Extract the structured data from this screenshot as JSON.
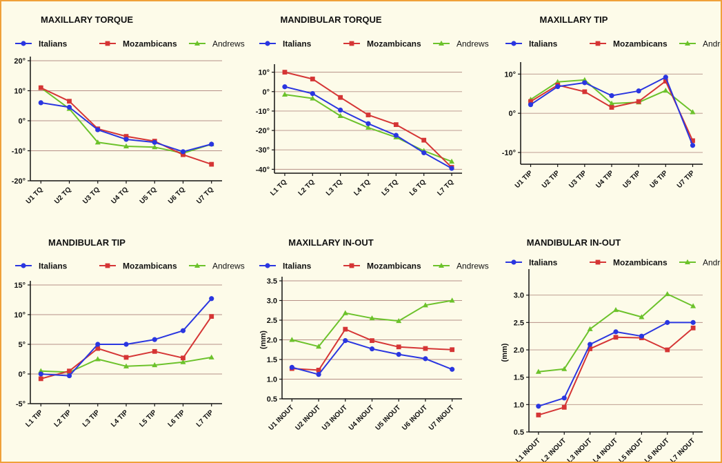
{
  "colors": {
    "background": "#fdfbe9",
    "border": "#f0a13a",
    "gridline": "#b58f86",
    "axis": "#111111"
  },
  "chart_data": [
    {
      "type": "line",
      "title": "MAXILLARY TORQUE",
      "ylabel": "",
      "y_suffix": "°",
      "ylim": [
        -20,
        20
      ],
      "yticks": [
        -20,
        -10,
        0,
        10,
        20
      ],
      "grid": true,
      "legend": "top",
      "categories": [
        "U1 TQ",
        "U2 TQ",
        "U3 TQ",
        "U4 TQ",
        "U5 TQ",
        "U6 TQ",
        "U7 TQ"
      ],
      "series": [
        {
          "name": "Italians",
          "color": "#2a36e0",
          "marker": "circle",
          "values": [
            6.0,
            4.5,
            -3.0,
            -6.2,
            -7.2,
            -10.3,
            -7.8
          ]
        },
        {
          "name": "Mozambicans",
          "color": "#d53535",
          "marker": "square",
          "values": [
            11.0,
            6.5,
            -2.7,
            -5.2,
            -6.8,
            -11.3,
            -14.5
          ]
        },
        {
          "name": "Andrews",
          "color": "#6cc22b",
          "marker": "triangle",
          "values": [
            11.0,
            4.0,
            -7.2,
            -8.5,
            -8.8,
            -10.8,
            -7.8
          ]
        }
      ]
    },
    {
      "type": "line",
      "title": "MANDIBULAR TORQUE",
      "ylabel": "",
      "y_suffix": "°",
      "ylim": [
        -42,
        12
      ],
      "yticks": [
        -40,
        -30,
        -20,
        -10,
        0,
        10
      ],
      "grid": true,
      "legend": "top",
      "categories": [
        "L1 TQ",
        "L2 TQ",
        "L3 TQ",
        "L4 TQ",
        "L5 TQ",
        "L6 TQ",
        "L7 TQ"
      ],
      "series": [
        {
          "name": "Italians",
          "color": "#2a36e0",
          "marker": "circle",
          "values": [
            2.5,
            -1.0,
            -9.5,
            -16.5,
            -22.5,
            -31.5,
            -39.5
          ]
        },
        {
          "name": "Mozambicans",
          "color": "#d53535",
          "marker": "square",
          "values": [
            10.0,
            6.5,
            -3.0,
            -12.0,
            -17.0,
            -25.0,
            -39.0
          ]
        },
        {
          "name": "Andrews",
          "color": "#6cc22b",
          "marker": "triangle",
          "values": [
            -1.5,
            -3.5,
            -12.5,
            -18.5,
            -23.5,
            -30.5,
            -36.0
          ]
        }
      ]
    },
    {
      "type": "line",
      "title": "MAXILLARY TIP",
      "ylabel": "",
      "y_suffix": "°",
      "ylim": [
        -13,
        12
      ],
      "yticks": [
        -10,
        0,
        10
      ],
      "grid": true,
      "legend": "top",
      "categories": [
        "U1 TIP",
        "U2 TIP",
        "U3 TIP",
        "U4 TIP",
        "U5 TIP",
        "U6 TIP",
        "U7 TIP"
      ],
      "series": [
        {
          "name": "Italians",
          "color": "#2a36e0",
          "marker": "circle",
          "values": [
            2.2,
            6.8,
            7.8,
            4.5,
            5.7,
            9.2,
            -8.2
          ]
        },
        {
          "name": "Mozambicans",
          "color": "#d53535",
          "marker": "square",
          "values": [
            3.0,
            7.2,
            5.5,
            1.5,
            3.0,
            8.2,
            -7.0
          ]
        },
        {
          "name": "Andrews",
          "color": "#6cc22b",
          "marker": "triangle",
          "values": [
            3.5,
            8.0,
            8.5,
            2.5,
            2.8,
            5.8,
            0.3
          ]
        }
      ]
    },
    {
      "type": "line",
      "title": "MANDIBULAR TIP",
      "ylabel": "",
      "y_suffix": "°",
      "ylim": [
        -5,
        15
      ],
      "yticks": [
        -5,
        0,
        5,
        10,
        15
      ],
      "grid": true,
      "legend": "top",
      "categories": [
        "L1 TIP",
        "L2 TIP",
        "L3 TIP",
        "L4 TIP",
        "L5 TIP",
        "L6 TIP",
        "L7 TIP"
      ],
      "series": [
        {
          "name": "Italians",
          "color": "#2a36e0",
          "marker": "circle",
          "values": [
            0.0,
            -0.3,
            5.0,
            5.0,
            5.8,
            7.3,
            12.7
          ]
        },
        {
          "name": "Mozambicans",
          "color": "#d53535",
          "marker": "square",
          "values": [
            -0.8,
            0.5,
            4.3,
            2.8,
            3.8,
            2.7,
            9.7
          ]
        },
        {
          "name": "Andrews",
          "color": "#6cc22b",
          "marker": "triangle",
          "values": [
            0.5,
            0.3,
            2.5,
            1.3,
            1.5,
            2.0,
            2.8
          ]
        }
      ]
    },
    {
      "type": "line",
      "title": "MAXILLARY IN-OUT",
      "ylabel": "(mm)",
      "y_suffix": "",
      "ylim": [
        0.5,
        3.5
      ],
      "yticks": [
        0.5,
        1.0,
        1.5,
        2.0,
        2.5,
        3.0,
        3.5
      ],
      "grid": true,
      "legend": "top",
      "categories": [
        "U1 INOUT",
        "U2 INOUT",
        "U3 INOUT",
        "U4 INOUT",
        "U5 INOUT",
        "U6 INOUT",
        "U7 INOUT"
      ],
      "series": [
        {
          "name": "Italians",
          "color": "#2a36e0",
          "marker": "circle",
          "values": [
            1.3,
            1.12,
            1.98,
            1.77,
            1.63,
            1.52,
            1.25
          ]
        },
        {
          "name": "Mozambicans",
          "color": "#d53535",
          "marker": "square",
          "values": [
            1.27,
            1.23,
            2.27,
            1.98,
            1.82,
            1.78,
            1.75
          ]
        },
        {
          "name": "Andrews",
          "color": "#6cc22b",
          "marker": "triangle",
          "values": [
            2.0,
            1.83,
            2.68,
            2.55,
            2.48,
            2.88,
            3.0
          ]
        }
      ]
    },
    {
      "type": "line",
      "title": "MANDIBULAR IN-OUT",
      "ylabel": "(mm)",
      "y_suffix": "",
      "ylim": [
        0.5,
        3.4
      ],
      "yticks": [
        0.5,
        1.0,
        1.5,
        2.0,
        2.5,
        3.0
      ],
      "grid": true,
      "legend": "top",
      "categories": [
        "L1 INOUT",
        "L2 INOUT",
        "L3 INOUT",
        "L4 INOUT",
        "L5 INOUT",
        "L6 INOUT",
        "L7 INOUT"
      ],
      "series": [
        {
          "name": "Italians",
          "color": "#2a36e0",
          "marker": "circle",
          "values": [
            0.97,
            1.12,
            2.1,
            2.33,
            2.25,
            2.5,
            2.5
          ]
        },
        {
          "name": "Mozambicans",
          "color": "#d53535",
          "marker": "square",
          "values": [
            0.81,
            0.95,
            2.02,
            2.23,
            2.22,
            2.0,
            2.4
          ]
        },
        {
          "name": "Andrews",
          "color": "#6cc22b",
          "marker": "triangle",
          "values": [
            1.6,
            1.65,
            2.38,
            2.73,
            2.6,
            3.02,
            2.8
          ]
        }
      ]
    }
  ]
}
